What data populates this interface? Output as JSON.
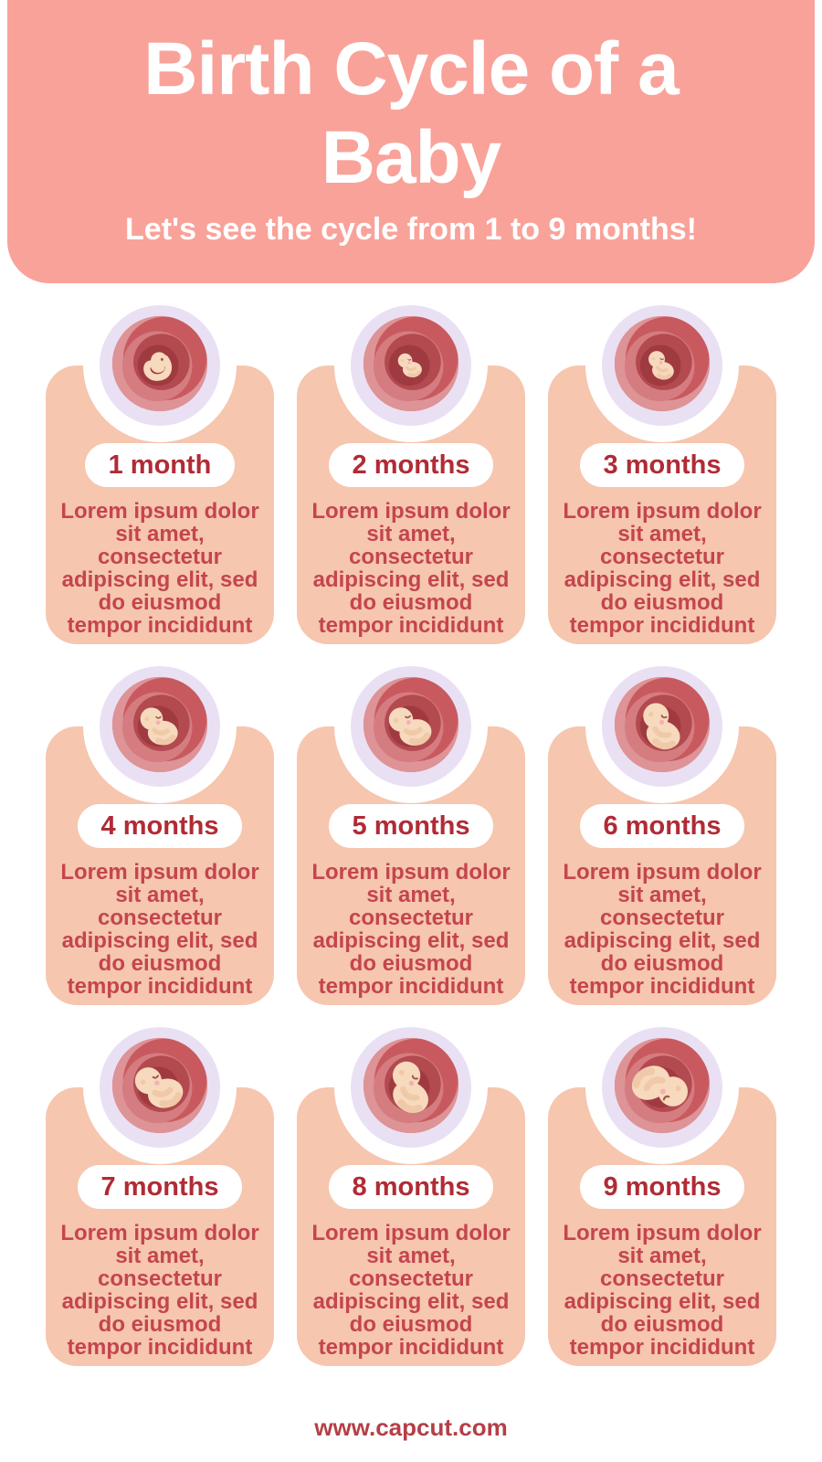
{
  "header": {
    "title_lines": [
      "Birth Cycle of a",
      "Baby"
    ],
    "subtitle": "Let's see the cycle from 1 to 9 months!"
  },
  "footer": {
    "url": "www.capcut.com"
  },
  "colors": {
    "header_bg": "#F9A29A",
    "card_bg": "#F6C6AF",
    "pill_bg": "#FFFFFF",
    "month_text": "#B02B35",
    "body_text": "#C4454E",
    "footer_text": "#B43F47",
    "ring": "#EAE0F4",
    "womb_base": "#DE9396",
    "womb_main": "#C85A5F",
    "womb_mid": "#D57C80",
    "womb_dark": "#B24A50",
    "womb_darkest": "#A03A41",
    "skin": "#F7D9BD",
    "skin_shade": "#EFC9A8",
    "cheek": "#F4AFB4",
    "eye": "#9C5A4A"
  },
  "cards": [
    {
      "label": "1 month",
      "stage": 1,
      "body_lines": [
        "Lorem ipsum dolor",
        "sit amet,",
        "consectetur",
        "adipiscing elit, sed",
        "do eiusmod",
        "tempor incididunt"
      ]
    },
    {
      "label": "2 months",
      "stage": 2,
      "body_lines": [
        "Lorem ipsum dolor",
        "sit amet,",
        "consectetur",
        "adipiscing elit, sed",
        "do eiusmod",
        "tempor incididunt"
      ]
    },
    {
      "label": "3 months",
      "stage": 3,
      "body_lines": [
        "Lorem ipsum dolor",
        "sit amet,",
        "consectetur",
        "adipiscing elit, sed",
        "do eiusmod",
        "tempor incididunt"
      ]
    },
    {
      "label": "4 months",
      "stage": 4,
      "body_lines": [
        "Lorem ipsum dolor",
        "sit amet,",
        "consectetur",
        "adipiscing elit, sed",
        "do eiusmod",
        "tempor incididunt"
      ]
    },
    {
      "label": "5 months",
      "stage": 5,
      "body_lines": [
        "Lorem ipsum dolor",
        "sit amet,",
        "consectetur",
        "adipiscing elit, sed",
        "do eiusmod",
        "tempor incididunt"
      ]
    },
    {
      "label": "6 months",
      "stage": 6,
      "body_lines": [
        "Lorem ipsum dolor",
        "sit amet,",
        "consectetur",
        "adipiscing elit, sed",
        "do eiusmod",
        "tempor incididunt"
      ]
    },
    {
      "label": "7 months",
      "stage": 7,
      "body_lines": [
        "Lorem ipsum dolor",
        "sit amet,",
        "consectetur",
        "adipiscing elit, sed",
        "do eiusmod",
        "tempor incididunt"
      ]
    },
    {
      "label": "8 months",
      "stage": 8,
      "body_lines": [
        "Lorem ipsum dolor",
        "sit amet,",
        "consectetur",
        "adipiscing elit, sed",
        "do eiusmod",
        "tempor incididunt"
      ]
    },
    {
      "label": "9 months",
      "stage": 9,
      "body_lines": [
        "Lorem ipsum dolor",
        "sit amet,",
        "consectetur",
        "adipiscing elit, sed",
        "do eiusmod",
        "tempor incididunt"
      ]
    }
  ]
}
